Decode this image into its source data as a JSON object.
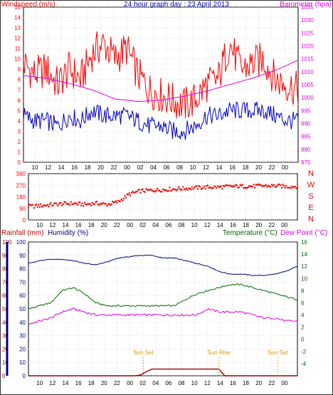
{
  "colors": {
    "red": "#ff0000",
    "blue": "#0000cc",
    "magenta": "#dd00dd",
    "green": "#006600",
    "darkred": "#990000",
    "navy": "#000080",
    "darkgreen": "#006400",
    "orange": "#d4a000",
    "grid": "#c8c8c8"
  },
  "chart_data": [
    {
      "type": "line",
      "title": "24 hour graph day : 23 April 2013",
      "ylabel": "Windspeed (m/s)",
      "y2label": "Barometer (hpa)",
      "x_ticks": [
        "10",
        "12",
        "14",
        "16",
        "18",
        "20",
        "22",
        "00",
        "02",
        "04",
        "06",
        "08",
        "10",
        "12",
        "14",
        "16",
        "18",
        "20",
        "22",
        "00"
      ],
      "ylim": [
        0,
        15
      ],
      "yticks": [
        "0",
        "1",
        "2",
        "3",
        "4",
        "5",
        "6",
        "7",
        "8",
        "9",
        "10",
        "11",
        "12",
        "13",
        "14",
        "15"
      ],
      "y2lim": [
        975,
        1035
      ],
      "y2ticks": [
        "975",
        "980",
        "985",
        "990",
        "995",
        "1000",
        "1005",
        "1010",
        "1015",
        "1020",
        "1025",
        "1030",
        "1035"
      ],
      "grid": true,
      "series": [
        {
          "name": "Barometer",
          "axis": "right",
          "x": [
            0,
            4,
            8,
            12,
            16,
            20,
            24,
            28,
            32,
            36,
            40,
            44,
            48
          ],
          "values": [
            1008.5,
            1007.5,
            1005.5,
            1003,
            999.5,
            998.5,
            999,
            1000.5,
            1002.5,
            1005,
            1007.5,
            1010.5,
            1014.5
          ]
        },
        {
          "name": "Gust",
          "axis": "left",
          "x": [
            0,
            2,
            4,
            6,
            8,
            10,
            12,
            14,
            16,
            18,
            20,
            22,
            24,
            26,
            28,
            30,
            32,
            34,
            36,
            38,
            40,
            42,
            44,
            46,
            48
          ],
          "values": [
            9.5,
            8.5,
            9,
            7.5,
            9,
            8,
            10.5,
            11.5,
            10,
            11,
            8.5,
            7,
            6.5,
            6,
            5.5,
            6,
            7.5,
            8,
            11.5,
            9,
            9.5,
            10,
            8,
            7.5,
            7
          ]
        },
        {
          "name": "Wind",
          "axis": "left",
          "x": [
            0,
            2,
            4,
            6,
            8,
            10,
            12,
            14,
            16,
            18,
            20,
            22,
            24,
            26,
            28,
            30,
            32,
            34,
            36,
            38,
            40,
            42,
            44,
            46,
            48
          ],
          "values": [
            4.5,
            4,
            4,
            3.5,
            4.5,
            4,
            5,
            4.5,
            4.5,
            4.5,
            4,
            3.5,
            3.5,
            3,
            3,
            3.5,
            4.5,
            4.5,
            5,
            5,
            5,
            5,
            4.5,
            4,
            4
          ]
        }
      ]
    },
    {
      "type": "scatter",
      "title": "",
      "ylabel": "",
      "ylim": [
        0,
        360
      ],
      "yticks": [
        "0",
        "90",
        "180",
        "270",
        "360"
      ],
      "right_labels": [
        "N",
        "W",
        "S",
        "E",
        "N"
      ],
      "x_ticks": [
        "10",
        "12",
        "14",
        "16",
        "18",
        "20",
        "22",
        "00",
        "02",
        "04",
        "06",
        "08",
        "10",
        "12",
        "14",
        "16",
        "18",
        "20",
        "22",
        "00"
      ],
      "grid": true,
      "series": [
        {
          "name": "Wind direction",
          "x": [
            0,
            2,
            4,
            6,
            8,
            10,
            12,
            14,
            16,
            18,
            20,
            22,
            24,
            26,
            28,
            30,
            32,
            34,
            36,
            38,
            40,
            42,
            44,
            46,
            48
          ],
          "values": [
            105,
            110,
            118,
            125,
            128,
            120,
            130,
            120,
            140,
            200,
            225,
            230,
            235,
            240,
            245,
            250,
            255,
            255,
            260,
            262,
            262,
            265,
            265,
            260,
            260
          ]
        }
      ]
    },
    {
      "type": "line",
      "title": "",
      "ylabel": "Rainfall (mm)",
      "y2label": "Humidity (%)",
      "y3label": "Temperature (°C)",
      "y4label": "Dew Point (°C)",
      "x_ticks": [
        "10",
        "12",
        "14",
        "16",
        "18",
        "20",
        "22",
        "00",
        "02",
        "04",
        "06",
        "08",
        "10",
        "12",
        "14",
        "16",
        "18",
        "20",
        "22",
        "00"
      ],
      "rain_ticks": [
        "0",
        "10",
        "20",
        "30",
        "40",
        "50",
        "60",
        "70",
        "80",
        "90",
        "100"
      ],
      "humidity_ticks": [
        "0",
        "10",
        "20",
        "30",
        "40",
        "50",
        "60",
        "70",
        "80",
        "90",
        "100"
      ],
      "temp_ticks": [
        "-4",
        "-2",
        "0",
        "2",
        "4",
        "6",
        "8",
        "10",
        "12",
        "14",
        "16"
      ],
      "ylim": [
        0,
        100
      ],
      "temp_lim": [
        -6,
        16
      ],
      "grid": true,
      "annotations": [
        {
          "text": "Sun Set",
          "x": 20.5
        },
        {
          "text": "Sun Rise",
          "x": 34
        },
        {
          "text": "Sun Set",
          "x": 44.5
        }
      ],
      "series": [
        {
          "name": "Humidity",
          "x": [
            0,
            2,
            4,
            6,
            8,
            10,
            12,
            14,
            16,
            18,
            20,
            22,
            24,
            26,
            28,
            30,
            32,
            34,
            36,
            38,
            40,
            42,
            44,
            46,
            48
          ],
          "values": [
            84,
            86,
            87,
            87,
            86,
            84,
            83,
            85,
            88,
            89,
            90,
            90,
            88,
            88,
            86,
            84,
            82,
            78,
            76,
            76,
            75,
            75,
            76,
            78,
            82
          ]
        },
        {
          "name": "Temperature",
          "x": [
            0,
            2,
            4,
            6,
            8,
            10,
            12,
            14,
            16,
            18,
            20,
            22,
            24,
            26,
            28,
            30,
            32,
            34,
            36,
            38,
            40,
            42,
            44,
            46,
            48
          ],
          "values": [
            5,
            5.5,
            6,
            8,
            8.5,
            7.5,
            6,
            5.5,
            5.5,
            5.5,
            5.5,
            5.5,
            5.5,
            5.5,
            6.5,
            7.5,
            8,
            8.5,
            9,
            9,
            8.5,
            8,
            7.5,
            7,
            6.5
          ]
        },
        {
          "name": "Dew Point",
          "x": [
            0,
            2,
            4,
            6,
            8,
            10,
            12,
            14,
            16,
            18,
            20,
            22,
            24,
            26,
            28,
            30,
            32,
            34,
            36,
            38,
            40,
            42,
            44,
            46,
            48
          ],
          "values": [
            2.5,
            3,
            3.5,
            4.5,
            5,
            4.5,
            4,
            4,
            4,
            4,
            4,
            4,
            4,
            4,
            4,
            4,
            5,
            4.5,
            4.5,
            4.5,
            4,
            3.5,
            3.5,
            3,
            3
          ]
        },
        {
          "name": "Rainfall",
          "x": [
            0,
            19,
            20,
            21,
            22,
            27,
            30,
            34,
            35,
            48
          ],
          "values": [
            0,
            0,
            0.3,
            1.5,
            2.5,
            2.5,
            2.5,
            2.5,
            0,
            0
          ]
        }
      ]
    }
  ]
}
